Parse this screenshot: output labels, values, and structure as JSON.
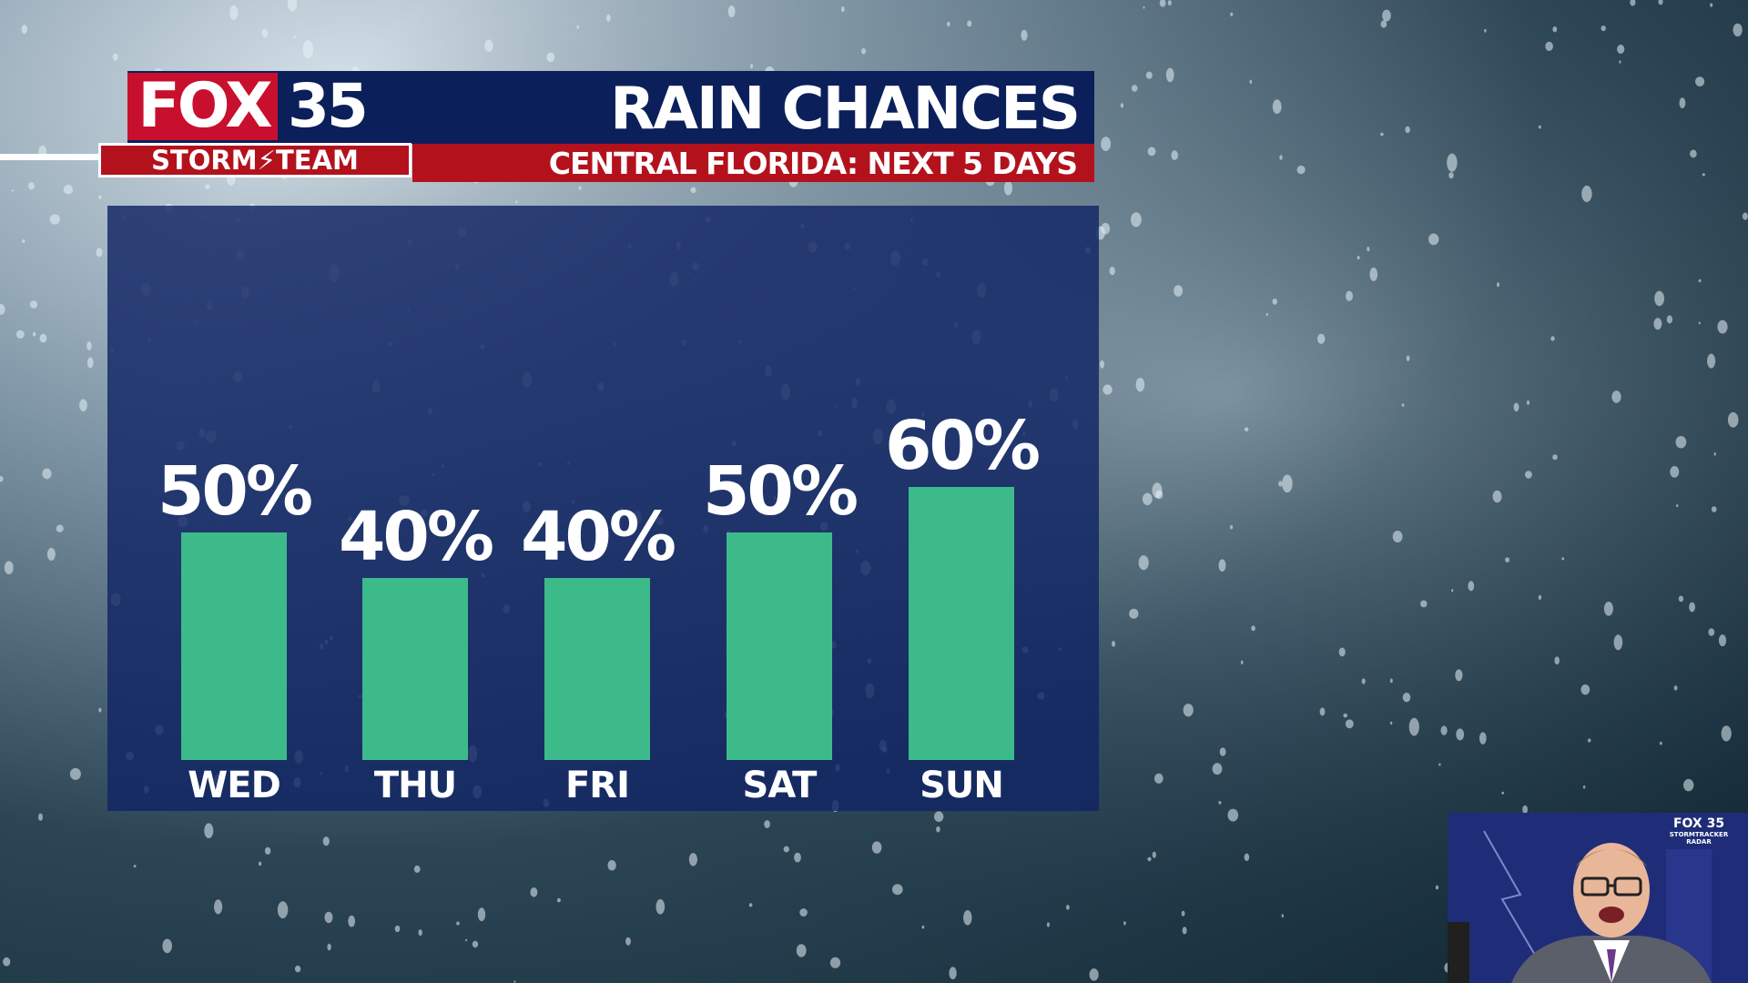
{
  "header": {
    "logo_fox": "FOX",
    "logo_number": "35",
    "logo_storm_team": "STORM⚡TEAM",
    "title": "RAIN CHANCES",
    "subtitle": "CENTRAL FLORIDA: NEXT 5 DAYS"
  },
  "colors": {
    "header_blue": "#0b1f5a",
    "header_red": "#b3121d",
    "panel_blue": "#102464",
    "bar_green": "#3dba8a"
  },
  "chart_data": {
    "type": "bar",
    "categories": [
      "WED",
      "THU",
      "FRI",
      "SAT",
      "SUN"
    ],
    "values": [
      50,
      40,
      40,
      50,
      60
    ],
    "value_labels": [
      "50%",
      "40%",
      "40%",
      "50%",
      "60%"
    ],
    "unit": "%",
    "title": "RAIN CHANCES",
    "subtitle": "CENTRAL FLORIDA: NEXT 5 DAYS",
    "ylim": [
      0,
      100
    ],
    "grid": false,
    "legend": "none",
    "bar_color": "#3dba8a"
  },
  "inset": {
    "logo_line1": "FOX 35",
    "logo_line2": "STORMTRACKER RADAR"
  }
}
